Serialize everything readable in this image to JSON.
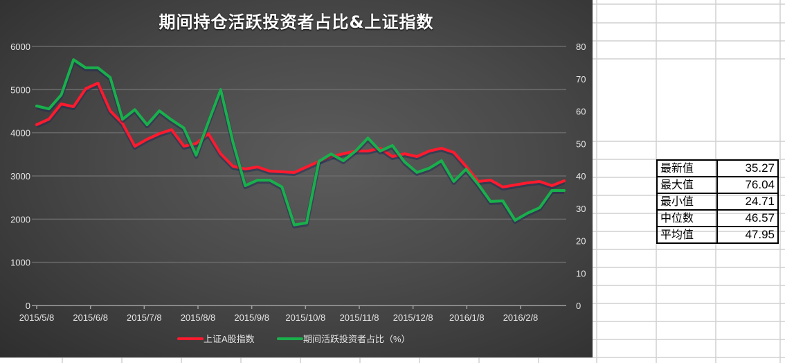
{
  "chart_data": {
    "type": "line",
    "title": "期间持仓活跃投资者占比&上证指数",
    "xlabel": "",
    "ylabel": "",
    "y2label": "",
    "x_tick_labels": [
      "2015/5/8",
      "2015/6/8",
      "2015/7/8",
      "2015/8/8",
      "2015/9/8",
      "2015/10/8",
      "2015/11/8",
      "2015/12/8",
      "2016/1/8",
      "2016/2/8"
    ],
    "ylim": [
      0,
      6000
    ],
    "y_ticks": [
      0,
      1000,
      2000,
      3000,
      4000,
      5000,
      6000
    ],
    "y2lim": [
      0,
      80
    ],
    "y2_ticks": [
      0,
      10,
      20,
      30,
      40,
      50,
      60,
      70,
      80
    ],
    "grid": true,
    "legend_position": "bottom",
    "series": [
      {
        "name": "上证A股指数",
        "axis": "left",
        "color": "#ff1a2e",
        "values": [
          4187,
          4315,
          4668,
          4604,
          5021,
          5149,
          4507,
          4218,
          3689,
          3850,
          3978,
          4074,
          3689,
          3753,
          3978,
          3513,
          3224,
          3160,
          3208,
          3112,
          3096,
          3080,
          3208,
          3336,
          3449,
          3513,
          3577,
          3577,
          3641,
          3449,
          3513,
          3449,
          3577,
          3641,
          3545,
          3224,
          2871,
          2903,
          2743,
          2791,
          2839,
          2871,
          2775,
          2887
        ]
      },
      {
        "name": "期间活跃投资者占比（%）",
        "axis": "right",
        "color": "#19b04b",
        "values": [
          61.6,
          60.7,
          65.0,
          75.9,
          73.4,
          73.4,
          70.4,
          57.5,
          60.5,
          55.8,
          60.1,
          57.3,
          54.8,
          46.4,
          56.7,
          66.7,
          50.5,
          37.0,
          38.7,
          38.7,
          36.6,
          24.9,
          25.5,
          44.5,
          46.8,
          44.7,
          47.7,
          51.7,
          47.7,
          49.4,
          44.3,
          41.1,
          42.4,
          44.7,
          38.3,
          42.1,
          37.4,
          32.1,
          32.3,
          26.3,
          28.5,
          30.2,
          35.5,
          35.5
        ]
      }
    ]
  },
  "legend": {
    "items": [
      {
        "label": "上证A股指数",
        "color": "#ff1a2e"
      },
      {
        "label": "期间活跃投资者占比（%）",
        "color": "#19b04b"
      }
    ]
  },
  "stats_table": {
    "rows": [
      {
        "label": "最新值",
        "value": "35.27"
      },
      {
        "label": "最大值",
        "value": "76.04"
      },
      {
        "label": "最小值",
        "value": "24.71"
      },
      {
        "label": "中位数",
        "value": "46.57"
      },
      {
        "label": "平均值",
        "value": "47.95"
      }
    ]
  },
  "colors": {
    "chart_bg": "#4a4a4a",
    "axis_text": "#e6e6e6",
    "gridline": "#6a6a6a",
    "sheet_gridline": "#d0d0d0"
  }
}
